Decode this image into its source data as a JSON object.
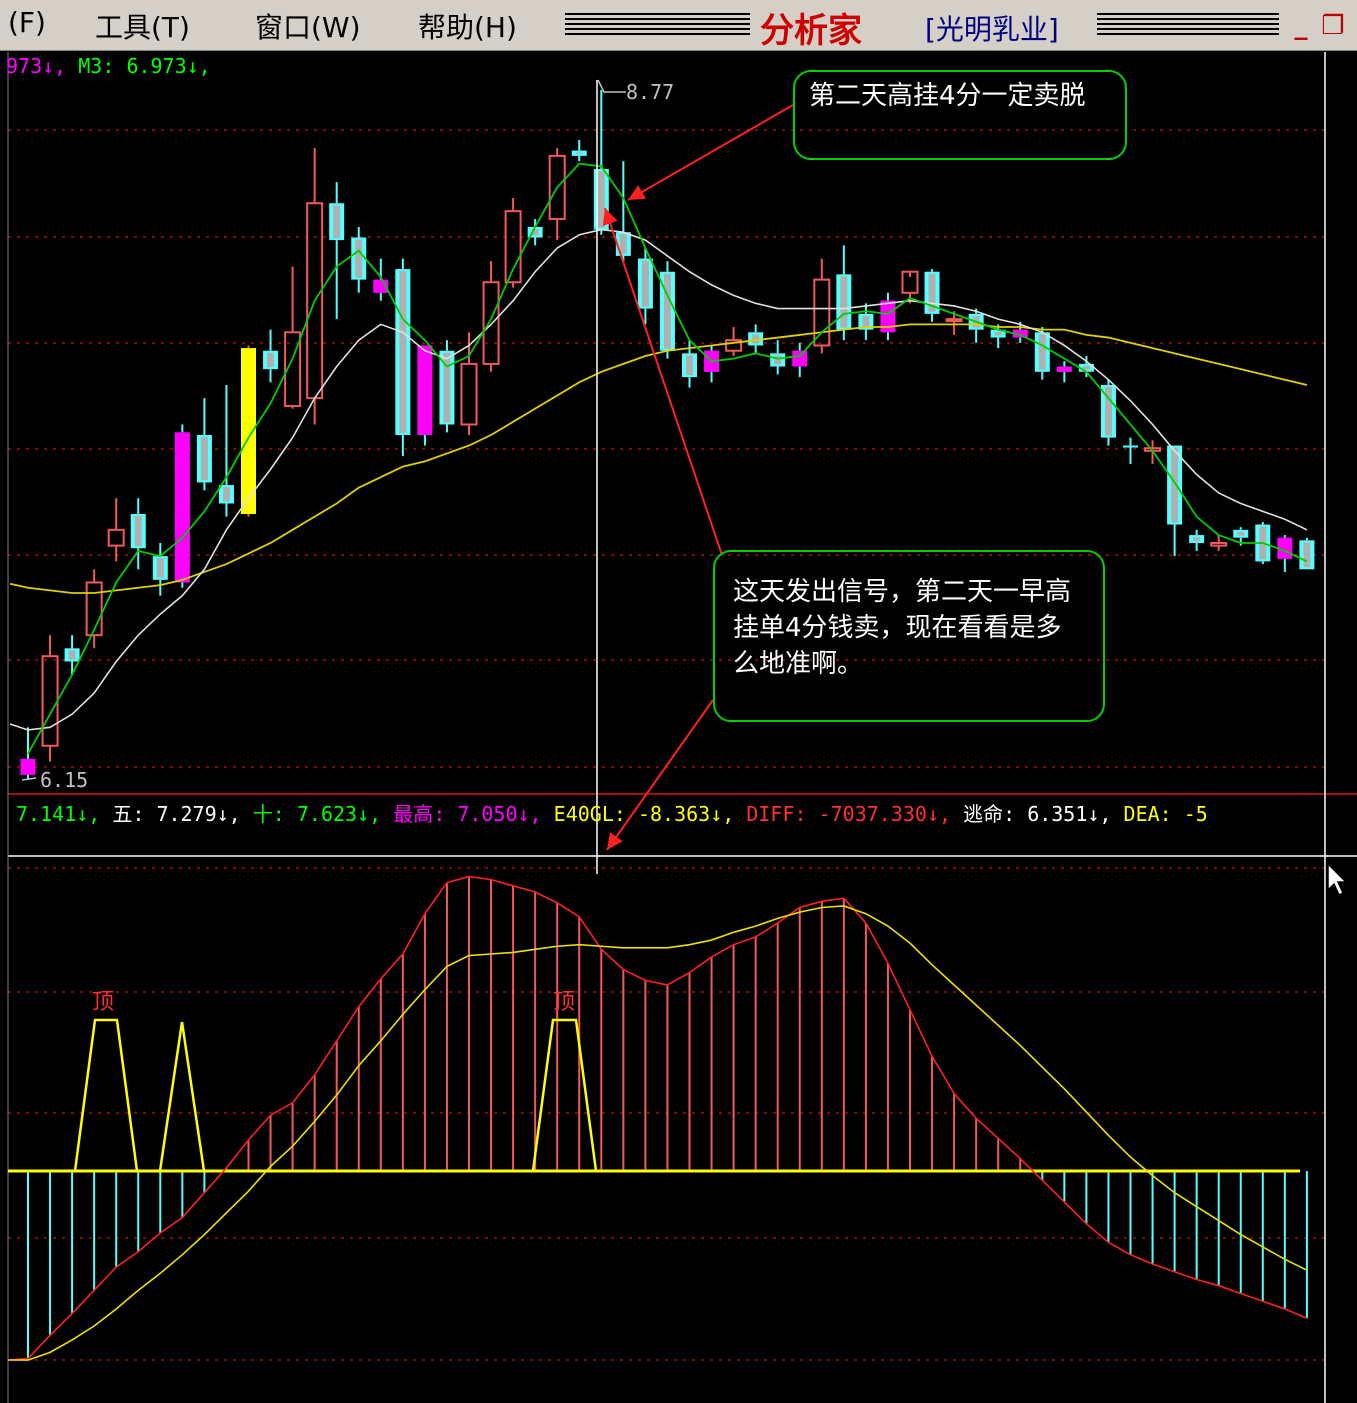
{
  "menu": {
    "file": "(F)",
    "tools": "工具(T)",
    "window": "窗口(W)",
    "help": "帮助(H)"
  },
  "title": {
    "app": "分析家",
    "stock": "[光明乳业]",
    "minimize": "_",
    "restore": "❐"
  },
  "top_legend": {
    "m2_value": "973↓,",
    "m3_label": "M3:",
    "m3_value": "6.973↓,"
  },
  "price_markers": {
    "high": "8.77",
    "low": "6.15"
  },
  "callouts": {
    "sell_note": "第二天高挂4分一定卖脱",
    "signal_note": "这天发出信号，第二天一早高挂单4分钱卖，现在看看是多么地准啊。"
  },
  "bottom_legend": {
    "v1": "7.141↓,",
    "five_label": "五:",
    "five_value": "7.279↓,",
    "ten_label": "十:",
    "ten_value": "7.623↓,",
    "max_label": "最高:",
    "max_value": "7.050↓,",
    "e40gl_label": "E40GL:",
    "e40gl_value": "-8.363↓,",
    "diff_label": "DIFF:",
    "diff_value": "-7037.330↓,",
    "escape_label": "逃命:",
    "escape_value": "6.351↓,",
    "dea_label": "DEA:",
    "dea_value": "-5"
  },
  "top_markers": [
    "顶",
    "顶"
  ],
  "colors": {
    "up": "#f05a5a",
    "down": "#55ffff",
    "special_magenta": "#ff00ff",
    "special_yellow": "#ffff00",
    "ma_green": "#00cc00",
    "ma_white": "#e0e0e0",
    "ma_yellow": "#e0d000",
    "grid": "#a01010"
  },
  "chart_data": {
    "type": "candlestick",
    "price_range": [
      6.15,
      8.77
    ],
    "candles": [
      {
        "o": 6.23,
        "h": 6.35,
        "l": 6.15,
        "c": 6.17,
        "k": "m"
      },
      {
        "o": 6.28,
        "h": 6.7,
        "l": 6.22,
        "c": 6.62,
        "k": "u"
      },
      {
        "o": 6.6,
        "h": 6.7,
        "l": 6.55,
        "c": 6.65,
        "k": "d"
      },
      {
        "o": 6.7,
        "h": 6.95,
        "l": 6.65,
        "c": 6.9,
        "k": "u"
      },
      {
        "o": 7.1,
        "h": 7.22,
        "l": 6.98,
        "c": 7.04,
        "k": "u"
      },
      {
        "o": 7.16,
        "h": 7.22,
        "l": 6.95,
        "c": 7.03,
        "k": "d"
      },
      {
        "o": 7.0,
        "h": 7.05,
        "l": 6.85,
        "c": 6.91,
        "k": "d"
      },
      {
        "o": 6.9,
        "h": 7.5,
        "l": 6.88,
        "c": 7.47,
        "k": "m"
      },
      {
        "o": 7.46,
        "h": 7.6,
        "l": 7.25,
        "c": 7.28,
        "k": "d"
      },
      {
        "o": 7.27,
        "h": 7.65,
        "l": 7.15,
        "c": 7.2,
        "k": "d"
      },
      {
        "o": 7.16,
        "h": 7.8,
        "l": 7.15,
        "c": 7.79,
        "k": "y"
      },
      {
        "o": 7.78,
        "h": 7.86,
        "l": 7.66,
        "c": 7.71,
        "k": "d"
      },
      {
        "o": 7.57,
        "h": 8.1,
        "l": 7.56,
        "c": 7.85,
        "k": "u"
      },
      {
        "o": 7.6,
        "h": 8.55,
        "l": 7.5,
        "c": 8.34,
        "k": "u"
      },
      {
        "o": 8.34,
        "h": 8.42,
        "l": 7.9,
        "c": 8.2,
        "k": "d"
      },
      {
        "o": 8.21,
        "h": 8.25,
        "l": 8.0,
        "c": 8.05,
        "k": "d"
      },
      {
        "o": 8.05,
        "h": 8.13,
        "l": 7.97,
        "c": 8.0,
        "k": "m"
      },
      {
        "o": 8.09,
        "h": 8.13,
        "l": 7.38,
        "c": 7.46,
        "k": "d"
      },
      {
        "o": 7.46,
        "h": 7.78,
        "l": 7.42,
        "c": 7.8,
        "k": "m"
      },
      {
        "o": 7.78,
        "h": 7.82,
        "l": 7.47,
        "c": 7.5,
        "k": "d"
      },
      {
        "o": 7.5,
        "h": 7.85,
        "l": 7.46,
        "c": 7.73,
        "k": "u"
      },
      {
        "o": 7.73,
        "h": 8.12,
        "l": 7.7,
        "c": 8.04,
        "k": "u"
      },
      {
        "o": 8.04,
        "h": 8.36,
        "l": 8.02,
        "c": 8.31,
        "k": "u"
      },
      {
        "o": 8.25,
        "h": 8.28,
        "l": 8.18,
        "c": 8.21,
        "k": "d"
      },
      {
        "o": 8.28,
        "h": 8.55,
        "l": 8.2,
        "c": 8.52,
        "k": "u"
      },
      {
        "o": 8.54,
        "h": 8.58,
        "l": 8.5,
        "c": 8.52,
        "k": "d"
      },
      {
        "o": 8.47,
        "h": 8.77,
        "l": 8.22,
        "c": 8.24,
        "k": "d"
      },
      {
        "o": 8.23,
        "h": 8.5,
        "l": 8.12,
        "c": 8.14,
        "k": "d"
      },
      {
        "o": 8.13,
        "h": 8.17,
        "l": 7.88,
        "c": 7.94,
        "k": "d"
      },
      {
        "o": 8.08,
        "h": 8.12,
        "l": 7.75,
        "c": 7.78,
        "k": "d"
      },
      {
        "o": 7.77,
        "h": 7.82,
        "l": 7.64,
        "c": 7.68,
        "k": "d"
      },
      {
        "o": 7.7,
        "h": 7.8,
        "l": 7.66,
        "c": 7.78,
        "k": "m"
      },
      {
        "o": 7.78,
        "h": 7.87,
        "l": 7.76,
        "c": 7.82,
        "k": "u"
      },
      {
        "o": 7.85,
        "h": 7.88,
        "l": 7.77,
        "c": 7.8,
        "k": "d"
      },
      {
        "o": 7.77,
        "h": 7.82,
        "l": 7.69,
        "c": 7.72,
        "k": "d"
      },
      {
        "o": 7.72,
        "h": 7.81,
        "l": 7.68,
        "c": 7.78,
        "k": "m"
      },
      {
        "o": 7.8,
        "h": 8.13,
        "l": 7.77,
        "c": 8.05,
        "k": "u"
      },
      {
        "o": 8.07,
        "h": 8.18,
        "l": 7.82,
        "c": 7.86,
        "k": "d"
      },
      {
        "o": 7.86,
        "h": 7.96,
        "l": 7.82,
        "c": 7.92,
        "k": "d"
      },
      {
        "o": 7.85,
        "h": 8.0,
        "l": 7.82,
        "c": 7.97,
        "k": "m"
      },
      {
        "o": 8.0,
        "h": 8.06,
        "l": 7.96,
        "c": 8.08,
        "k": "u"
      },
      {
        "o": 8.08,
        "h": 8.09,
        "l": 7.89,
        "c": 7.92,
        "k": "d"
      },
      {
        "o": 7.9,
        "h": 7.93,
        "l": 7.84,
        "c": 7.9,
        "k": "u"
      },
      {
        "o": 7.92,
        "h": 7.94,
        "l": 7.81,
        "c": 7.86,
        "k": "d"
      },
      {
        "o": 7.86,
        "h": 7.88,
        "l": 7.79,
        "c": 7.83,
        "k": "d"
      },
      {
        "o": 7.86,
        "h": 7.89,
        "l": 7.81,
        "c": 7.83,
        "k": "m"
      },
      {
        "o": 7.85,
        "h": 7.87,
        "l": 7.67,
        "c": 7.7,
        "k": "d"
      },
      {
        "o": 7.7,
        "h": 7.74,
        "l": 7.66,
        "c": 7.72,
        "k": "m"
      },
      {
        "o": 7.73,
        "h": 7.76,
        "l": 7.68,
        "c": 7.7,
        "k": "d"
      },
      {
        "o": 7.65,
        "h": 7.67,
        "l": 7.42,
        "c": 7.45,
        "k": "d"
      },
      {
        "o": 7.42,
        "h": 7.45,
        "l": 7.35,
        "c": 7.42,
        "k": "d"
      },
      {
        "o": 7.41,
        "h": 7.44,
        "l": 7.35,
        "c": 7.4,
        "k": "u"
      },
      {
        "o": 7.42,
        "h": 7.42,
        "l": 7.0,
        "c": 7.12,
        "k": "d"
      },
      {
        "o": 7.08,
        "h": 7.1,
        "l": 7.02,
        "c": 7.05,
        "k": "d"
      },
      {
        "o": 7.05,
        "h": 7.08,
        "l": 7.02,
        "c": 7.04,
        "k": "u"
      },
      {
        "o": 7.07,
        "h": 7.11,
        "l": 7.04,
        "c": 7.1,
        "k": "d"
      },
      {
        "o": 7.12,
        "h": 7.13,
        "l": 6.97,
        "c": 6.98,
        "k": "d"
      },
      {
        "o": 7.07,
        "h": 7.08,
        "l": 6.94,
        "c": 6.99,
        "k": "m"
      },
      {
        "o": 7.06,
        "h": 7.07,
        "l": 6.95,
        "c": 6.95,
        "k": "d"
      }
    ],
    "ma_green": [
      6.25,
      6.4,
      6.55,
      6.72,
      6.9,
      7.02,
      7.0,
      7.07,
      7.17,
      7.3,
      7.45,
      7.58,
      7.75,
      7.97,
      8.1,
      8.16,
      8.06,
      7.9,
      7.82,
      7.72,
      7.76,
      7.9,
      8.09,
      8.25,
      8.4,
      8.49,
      8.48,
      8.36,
      8.17,
      7.99,
      7.82,
      7.74,
      7.75,
      7.77,
      7.75,
      7.76,
      7.85,
      7.92,
      7.93,
      7.92,
      7.98,
      7.95,
      7.92,
      7.89,
      7.86,
      7.84,
      7.8,
      7.75,
      7.7,
      7.6,
      7.5,
      7.4,
      7.28,
      7.15,
      7.08,
      7.05,
      7.05,
      7.02,
      6.98
    ],
    "ma_white": [
      6.34,
      6.35,
      6.4,
      6.48,
      6.6,
      6.7,
      6.78,
      6.85,
      6.95,
      7.1,
      7.22,
      7.33,
      7.45,
      7.6,
      7.72,
      7.82,
      7.88,
      7.85,
      7.78,
      7.75,
      7.8,
      7.88,
      7.97,
      8.08,
      8.17,
      8.22,
      8.24,
      8.23,
      8.2,
      8.14,
      8.08,
      8.03,
      7.99,
      7.96,
      7.94,
      7.94,
      7.94,
      7.94,
      7.95,
      7.96,
      7.97,
      7.96,
      7.95,
      7.93,
      7.9,
      7.88,
      7.85,
      7.8,
      7.74,
      7.67,
      7.59,
      7.5,
      7.4,
      7.31,
      7.24,
      7.2,
      7.17,
      7.14,
      7.1
    ],
    "ma_yellow": [
      6.88,
      6.87,
      6.86,
      6.86,
      6.87,
      6.88,
      6.89,
      6.91,
      6.94,
      6.97,
      7.01,
      7.05,
      7.1,
      7.15,
      7.2,
      7.26,
      7.3,
      7.34,
      7.36,
      7.39,
      7.42,
      7.46,
      7.51,
      7.56,
      7.61,
      7.66,
      7.7,
      7.73,
      7.76,
      7.78,
      7.79,
      7.8,
      7.81,
      7.82,
      7.83,
      7.84,
      7.85,
      7.86,
      7.87,
      7.87,
      7.88,
      7.88,
      7.88,
      7.88,
      7.87,
      7.87,
      7.86,
      7.86,
      7.84,
      7.83,
      7.81,
      7.79,
      7.77,
      7.75,
      7.73,
      7.71,
      7.69,
      7.67,
      7.65
    ],
    "macd": {
      "diff": [
        0.1,
        1.6,
        3.0,
        4.5,
        6.0,
        7.0,
        8.2,
        9.2,
        10.8,
        12.4,
        14.2,
        15.8,
        16.6,
        18.4,
        20.6,
        22.8,
        24.6,
        26.2,
        28.8,
        30.8,
        31.2,
        31.0,
        30.6,
        30.2,
        29.5,
        28.6,
        26.5,
        25.2,
        24.5,
        24.2,
        25.0,
        26.0,
        26.8,
        27.3,
        28.2,
        29.2,
        29.6,
        29.8,
        28.2,
        25.6,
        22.6,
        19.6,
        17.2,
        15.6,
        14.3,
        13.0,
        11.6,
        10.2,
        8.8,
        7.6,
        6.8,
        6.2,
        5.7,
        5.2,
        4.8,
        4.3,
        3.8,
        3.3,
        2.7
      ],
      "dea": [
        0.0,
        0.5,
        1.3,
        2.2,
        3.3,
        4.5,
        5.6,
        6.8,
        8.1,
        9.5,
        10.9,
        12.5,
        13.8,
        15.4,
        17.1,
        19.0,
        20.6,
        22.3,
        23.9,
        25.4,
        26.1,
        26.2,
        26.3,
        26.5,
        26.7,
        26.8,
        26.7,
        26.6,
        26.6,
        26.6,
        26.8,
        27.1,
        27.6,
        28.0,
        28.5,
        28.9,
        29.2,
        29.3,
        28.8,
        28.0,
        26.9,
        25.5,
        24.2,
        22.9,
        21.6,
        20.3,
        18.9,
        17.5,
        16.0,
        14.5,
        13.1,
        11.9,
        10.8,
        9.9,
        9.0,
        8.1,
        7.3,
        6.5,
        5.8
      ],
      "zero": 12.2
    }
  }
}
